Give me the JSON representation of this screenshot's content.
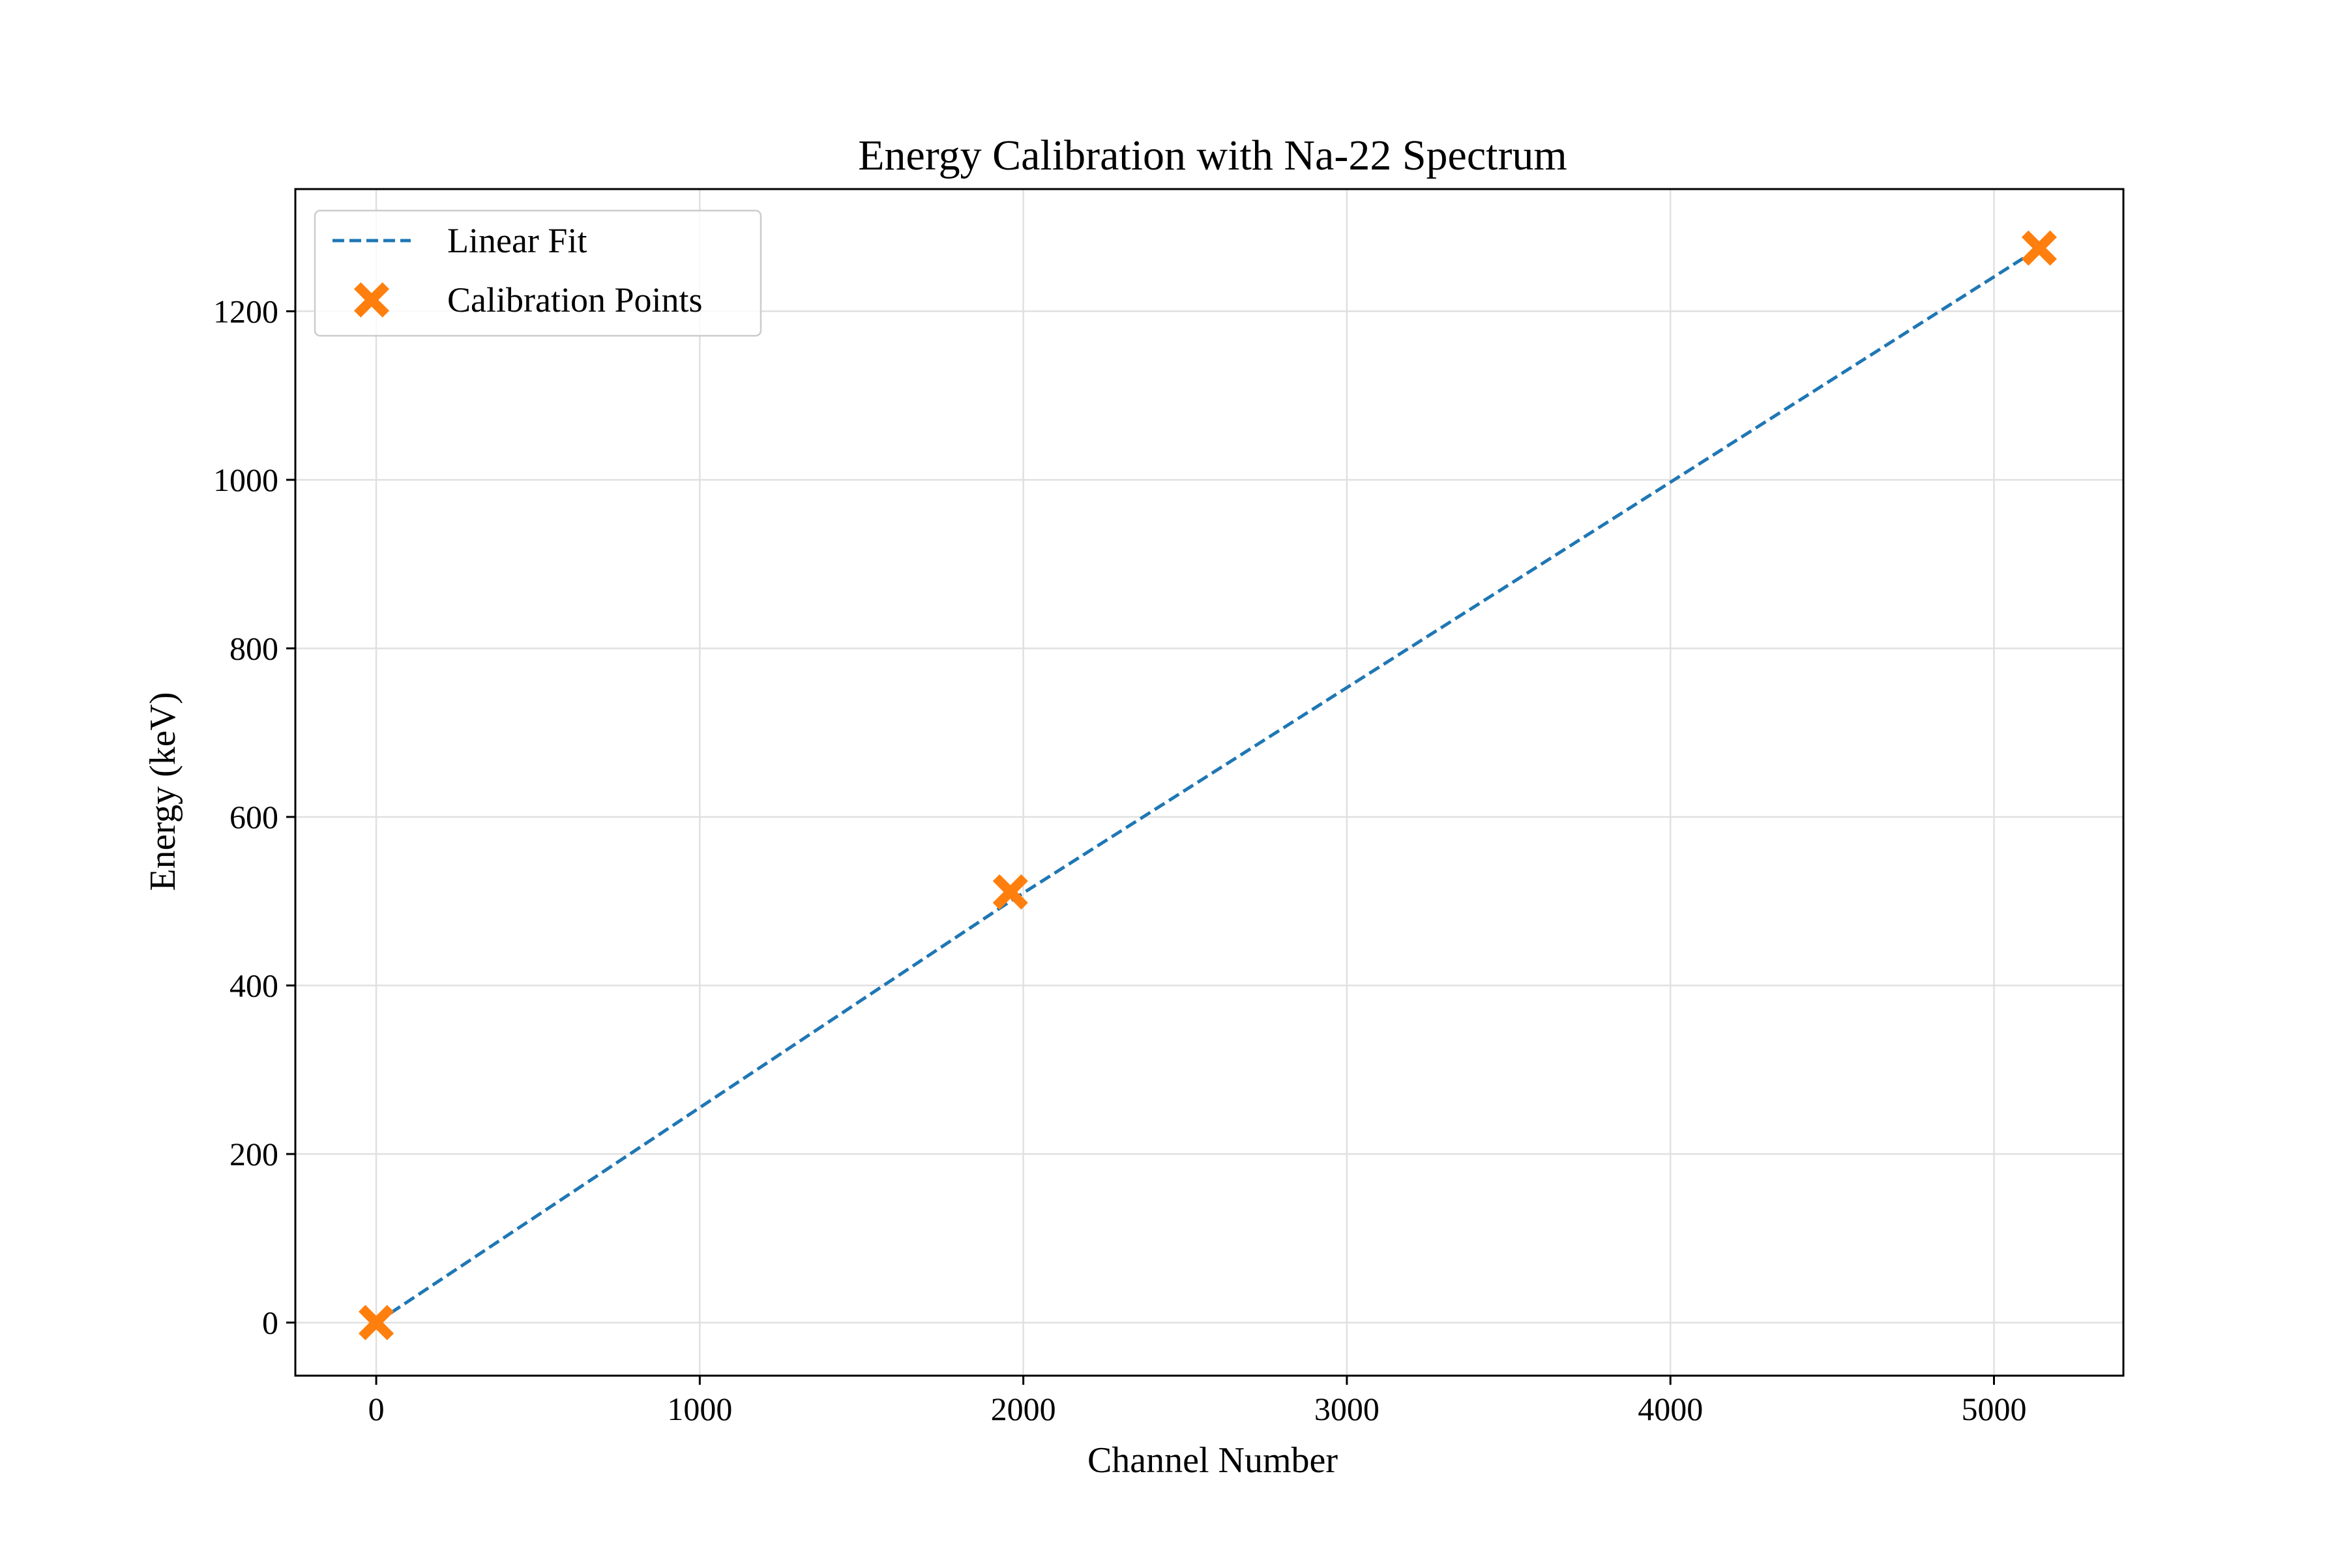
{
  "chart_data": {
    "type": "line",
    "title": "Energy Calibration with Na-22 Spectrum",
    "xlabel": "Channel Number",
    "ylabel": "Energy (keV)",
    "xlim": [
      -250,
      5400
    ],
    "ylim": [
      -63,
      1345
    ],
    "xticks": [
      0,
      1000,
      2000,
      3000,
      4000,
      5000
    ],
    "yticks": [
      0,
      200,
      400,
      600,
      800,
      1000,
      1200
    ],
    "grid": true,
    "legend_position": "top-left",
    "series": [
      {
        "name": "Linear Fit",
        "style": "dashed-line",
        "color": "#1f77b4",
        "x": [
          0,
          1960,
          5140
        ],
        "y": [
          0,
          500,
          1275
        ]
      },
      {
        "name": "Calibration Points",
        "style": "x-marker",
        "color": "#ff7f0e",
        "x": [
          0,
          1960,
          5140
        ],
        "y": [
          0,
          511,
          1275
        ]
      }
    ]
  }
}
